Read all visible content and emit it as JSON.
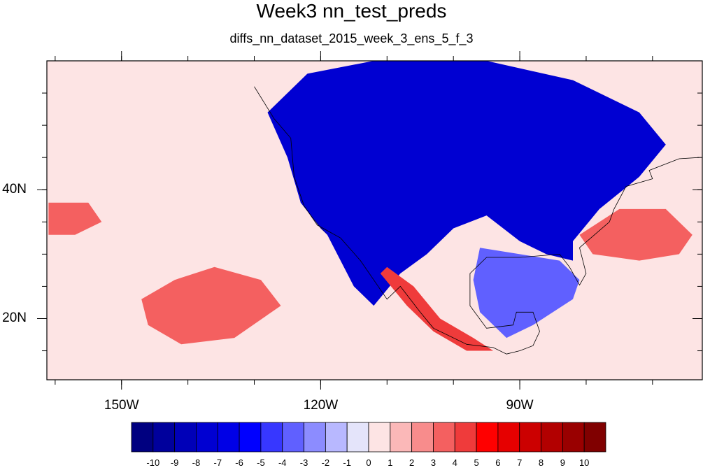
{
  "title": "Week3 nn_test_preds",
  "subtitle": "diffs_nn_dataset_2015_week_3_ens_5_f_3",
  "axes": {
    "lon_range": [
      -161.25,
      -62.5
    ],
    "lat_range": [
      10.5,
      60.0
    ],
    "x_ticks": [
      {
        "value": -150,
        "label": "150W"
      },
      {
        "value": -120,
        "label": "120W"
      },
      {
        "value": -90,
        "label": "90W"
      }
    ],
    "y_ticks": [
      {
        "value": 40,
        "label": "40N"
      },
      {
        "value": 20,
        "label": "20N"
      }
    ]
  },
  "colorbar": {
    "labels": [
      "-10",
      "-9",
      "-8",
      "-7",
      "-6",
      "-5",
      "-4",
      "-3",
      "-2",
      "-1",
      "0",
      "1",
      "2",
      "3",
      "4",
      "5",
      "6",
      "7",
      "8",
      "9",
      "10"
    ],
    "colors": [
      "#000080",
      "#00009c",
      "#0000b8",
      "#0000d2",
      "#0000e6",
      "#0000ff",
      "#3737ff",
      "#6060ff",
      "#8c8cff",
      "#b8b8ff",
      "#e4e4fa",
      "#fde4e4",
      "#fbb8b8",
      "#f88c8c",
      "#f46060",
      "#ef3b3b",
      "#ff0000",
      "#e60000",
      "#cc0000",
      "#b20000",
      "#990000",
      "#800000"
    ]
  },
  "field_regions": [
    {
      "name": "cold-anomaly-western-us",
      "level": -10,
      "polygon": [
        [
          -124,
          49
        ],
        [
          -117,
          51
        ],
        [
          -105,
          52
        ],
        [
          -95,
          51
        ],
        [
          -88,
          48
        ],
        [
          -85,
          44
        ],
        [
          -95,
          40
        ],
        [
          -102,
          36
        ],
        [
          -104,
          33
        ],
        [
          -108,
          31
        ],
        [
          -111,
          29
        ],
        [
          -113,
          25
        ],
        [
          -116,
          30
        ],
        [
          -120,
          34
        ],
        [
          -123,
          38
        ],
        [
          -124,
          44
        ]
      ]
    },
    {
      "name": "cold-anomaly-canada",
      "level": -7,
      "polygon": [
        [
          -128,
          52
        ],
        [
          -122,
          58
        ],
        [
          -112,
          60
        ],
        [
          -95,
          60
        ],
        [
          -82,
          57
        ],
        [
          -72,
          52
        ],
        [
          -68,
          47
        ],
        [
          -72,
          42
        ],
        [
          -78,
          37
        ],
        [
          -82,
          32
        ],
        [
          -82,
          29
        ],
        [
          -86,
          30
        ],
        [
          -90,
          32
        ],
        [
          -95,
          36
        ],
        [
          -100,
          34
        ],
        [
          -104,
          30
        ],
        [
          -108,
          27
        ],
        [
          -112,
          22
        ],
        [
          -115,
          25
        ],
        [
          -119,
          33
        ],
        [
          -123,
          38
        ],
        [
          -125,
          45
        ]
      ]
    },
    {
      "name": "cool-anomaly-east",
      "level": -3,
      "polygon": [
        [
          -96,
          31
        ],
        [
          -90,
          30
        ],
        [
          -84,
          29
        ],
        [
          -81,
          26
        ],
        [
          -82,
          23
        ],
        [
          -88,
          19
        ],
        [
          -92,
          17
        ],
        [
          -96,
          21
        ],
        [
          -97,
          26
        ]
      ]
    },
    {
      "name": "warm-anomaly-east-pacific",
      "level": 3,
      "polygon": [
        [
          -142,
          26
        ],
        [
          -136,
          28
        ],
        [
          -129,
          26
        ],
        [
          -126,
          22
        ],
        [
          -133,
          17
        ],
        [
          -141,
          16
        ],
        [
          -146,
          19
        ],
        [
          -147,
          23
        ]
      ]
    },
    {
      "name": "warm-anomaly-atlantic",
      "level": 3,
      "polygon": [
        [
          -81,
          33
        ],
        [
          -75,
          37
        ],
        [
          -68,
          37
        ],
        [
          -64,
          33
        ],
        [
          -66,
          30
        ],
        [
          -72,
          29
        ],
        [
          -79,
          30
        ]
      ]
    },
    {
      "name": "warm-anomaly-west-pacific",
      "level": 3,
      "polygon": [
        [
          -161,
          38
        ],
        [
          -155,
          38
        ],
        [
          -153,
          35
        ],
        [
          -157,
          33
        ],
        [
          -161,
          33
        ]
      ]
    },
    {
      "name": "warm-anomaly-mexico",
      "level": 4,
      "polygon": [
        [
          -110,
          28
        ],
        [
          -106,
          25
        ],
        [
          -102,
          20
        ],
        [
          -97,
          17
        ],
        [
          -94,
          15
        ],
        [
          -98,
          15
        ],
        [
          -103,
          18
        ],
        [
          -107,
          22
        ],
        [
          -111,
          27
        ]
      ]
    }
  ]
}
